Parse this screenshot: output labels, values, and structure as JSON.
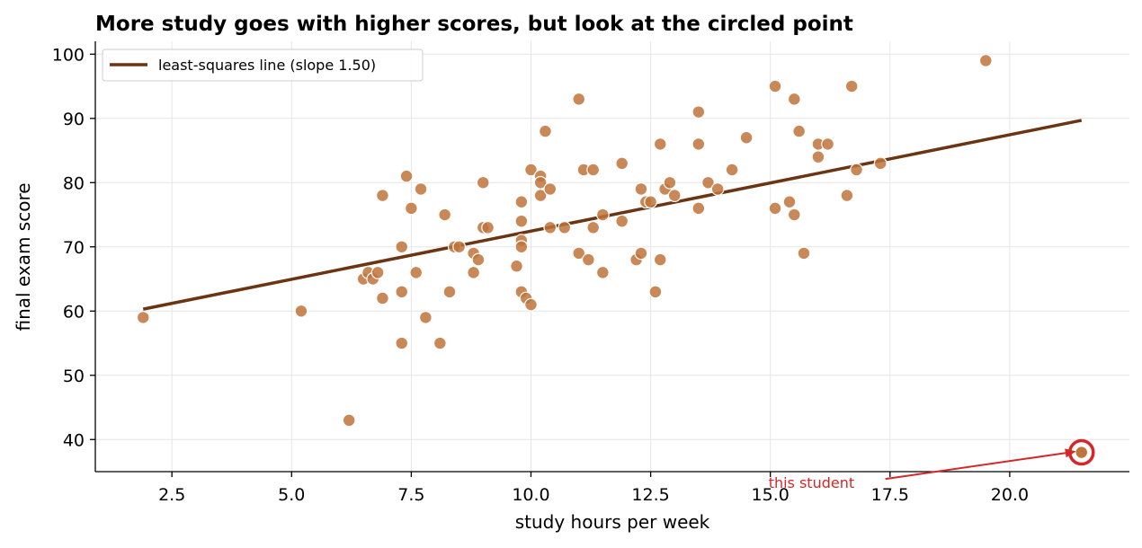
{
  "chart_data": {
    "type": "scatter",
    "title": "More study goes with higher scores, but look at the circled point",
    "xlabel": "study hours per week",
    "ylabel": "final exam score",
    "xlim": [
      0.9,
      22.5
    ],
    "ylim": [
      35,
      102
    ],
    "xticks": [
      2.5,
      5.0,
      7.5,
      10.0,
      12.5,
      15.0,
      17.5,
      20.0
    ],
    "xtick_labels": [
      "2.5",
      "5.0",
      "7.5",
      "10.0",
      "12.5",
      "15.0",
      "17.5",
      "20.0"
    ],
    "yticks": [
      40,
      50,
      60,
      70,
      80,
      90,
      100
    ],
    "ytick_labels": [
      "40",
      "50",
      "60",
      "70",
      "80",
      "90",
      "100"
    ],
    "grid": true,
    "legend": {
      "position": "top-left",
      "label": "least-squares line (slope 1.50)"
    },
    "colors": {
      "points": "#c0733a",
      "line": "#6b3413",
      "highlight": "#d62728"
    },
    "series": [
      {
        "kind": "scatter",
        "points": [
          [
            1.9,
            59
          ],
          [
            5.2,
            60
          ],
          [
            6.2,
            43
          ],
          [
            6.5,
            65
          ],
          [
            6.6,
            66
          ],
          [
            6.7,
            65
          ],
          [
            6.8,
            66
          ],
          [
            6.9,
            62
          ],
          [
            6.9,
            78
          ],
          [
            7.3,
            70
          ],
          [
            7.3,
            63
          ],
          [
            7.3,
            55
          ],
          [
            7.4,
            81
          ],
          [
            7.5,
            76
          ],
          [
            7.6,
            66
          ],
          [
            7.7,
            79
          ],
          [
            7.8,
            59
          ],
          [
            8.1,
            55
          ],
          [
            8.2,
            75
          ],
          [
            8.3,
            63
          ],
          [
            8.4,
            70
          ],
          [
            8.5,
            70
          ],
          [
            8.8,
            66
          ],
          [
            8.8,
            69
          ],
          [
            8.9,
            68
          ],
          [
            9.0,
            80
          ],
          [
            9.0,
            73
          ],
          [
            9.1,
            73
          ],
          [
            9.7,
            67
          ],
          [
            9.8,
            77
          ],
          [
            9.8,
            74
          ],
          [
            9.8,
            71
          ],
          [
            9.8,
            70
          ],
          [
            9.8,
            63
          ],
          [
            9.9,
            62
          ],
          [
            10.0,
            61
          ],
          [
            10.0,
            82
          ],
          [
            10.2,
            81
          ],
          [
            10.2,
            80
          ],
          [
            10.2,
            78
          ],
          [
            10.3,
            88
          ],
          [
            10.4,
            79
          ],
          [
            10.4,
            73
          ],
          [
            10.7,
            73
          ],
          [
            11.0,
            93
          ],
          [
            11.0,
            69
          ],
          [
            11.1,
            82
          ],
          [
            11.2,
            68
          ],
          [
            11.3,
            82
          ],
          [
            11.3,
            73
          ],
          [
            11.5,
            75
          ],
          [
            11.5,
            66
          ],
          [
            11.9,
            83
          ],
          [
            11.9,
            74
          ],
          [
            12.2,
            68
          ],
          [
            12.3,
            79
          ],
          [
            12.3,
            69
          ],
          [
            12.4,
            77
          ],
          [
            12.5,
            77
          ],
          [
            12.6,
            63
          ],
          [
            12.7,
            86
          ],
          [
            12.7,
            68
          ],
          [
            12.8,
            79
          ],
          [
            12.9,
            80
          ],
          [
            13.0,
            78
          ],
          [
            13.5,
            91
          ],
          [
            13.5,
            86
          ],
          [
            13.5,
            76
          ],
          [
            13.7,
            80
          ],
          [
            13.9,
            79
          ],
          [
            14.2,
            82
          ],
          [
            14.5,
            87
          ],
          [
            15.1,
            95
          ],
          [
            15.1,
            76
          ],
          [
            15.4,
            77
          ],
          [
            15.5,
            93
          ],
          [
            15.5,
            75
          ],
          [
            15.6,
            88
          ],
          [
            15.7,
            69
          ],
          [
            16.0,
            86
          ],
          [
            16.0,
            84
          ],
          [
            16.2,
            86
          ],
          [
            16.6,
            78
          ],
          [
            16.7,
            95
          ],
          [
            16.8,
            82
          ],
          [
            17.3,
            83
          ],
          [
            19.5,
            99
          ]
        ]
      },
      {
        "kind": "line",
        "name": "least-squares line (slope 1.50)",
        "x": [
          1.9,
          21.5
        ],
        "y": [
          60.3,
          89.7
        ]
      }
    ],
    "highlight": {
      "x": 21.5,
      "y": 38
    },
    "annotation": {
      "text": "this student",
      "x": 15.0,
      "y": 33.3
    }
  }
}
